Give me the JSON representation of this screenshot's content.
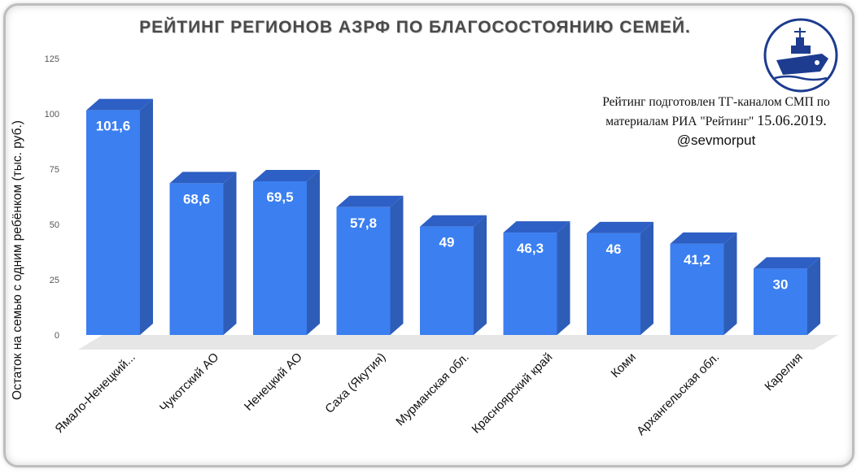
{
  "header": {
    "title": "РЕЙТИНГ РЕГИОНОВ АЗРФ ПО БЛАГОСОСТОЯНИЮ СЕМЕЙ."
  },
  "note": {
    "line1": "Рейтинг подготовлен ТГ-каналом СМП по",
    "line2_a": "материалам РИА \"Рейтинг\"",
    "line2_b": "15.06.2019.",
    "handle": "@sevmorput"
  },
  "logo": {
    "icon": "icebreaker-ship-logo",
    "color": "#1d3c8f"
  },
  "colors": {
    "bar_front": "#3b7ff0",
    "bar_side": "#2e5db8",
    "bar_top": "#2d5fc4",
    "floor": "#e6e6e6"
  },
  "chart_data": {
    "type": "bar",
    "title": "РЕЙТИНГ РЕГИОНОВ АЗРФ ПО БЛАГОСОСТОЯНИЮ СЕМЕЙ.",
    "ylabel": "Остаток на семью с одним ребёнком (тыс. руб.)",
    "xlabel": "",
    "ylim": [
      0,
      125
    ],
    "yticks": [
      0,
      25,
      50,
      75,
      100,
      125
    ],
    "grid": false,
    "legend": "none",
    "categories": [
      "Ямало-Ненецкий...",
      "Чукотский АО",
      "Ненецкий АО",
      "Саха (Якутия)",
      "Мурманская обл.",
      "Красноярский край",
      "Коми",
      "Архангельская обл.",
      "Карелия"
    ],
    "values": [
      101.6,
      68.6,
      69.5,
      57.8,
      49,
      46.3,
      46,
      41.2,
      30
    ],
    "value_labels": [
      "101,6",
      "68,6",
      "69,5",
      "57,8",
      "49",
      "46,3",
      "46",
      "41,2",
      "30"
    ]
  }
}
